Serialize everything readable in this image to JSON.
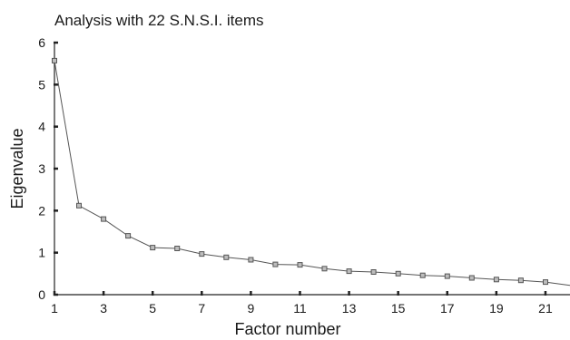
{
  "chart_data": {
    "type": "line",
    "title": "Analysis with 22 S.N.S.I. items",
    "xlabel": "Factor number",
    "ylabel": "Eigenvalue",
    "xlim": [
      1,
      22
    ],
    "ylim": [
      0,
      6
    ],
    "x_ticks": [
      1,
      3,
      5,
      7,
      9,
      11,
      13,
      15,
      17,
      19,
      21
    ],
    "y_ticks": [
      0,
      1,
      2,
      3,
      4,
      5,
      6
    ],
    "grid": false,
    "series": [
      {
        "x": [
          1,
          2,
          3,
          4,
          5,
          6,
          7,
          8,
          9,
          10,
          11,
          12,
          13,
          14,
          15,
          16,
          17,
          18,
          19,
          20,
          21,
          22
        ],
        "values": [
          5.57,
          2.12,
          1.8,
          1.4,
          1.12,
          1.1,
          0.97,
          0.89,
          0.83,
          0.72,
          0.71,
          0.62,
          0.56,
          0.54,
          0.5,
          0.46,
          0.44,
          0.4,
          0.36,
          0.34,
          0.3,
          0.22
        ]
      }
    ]
  }
}
